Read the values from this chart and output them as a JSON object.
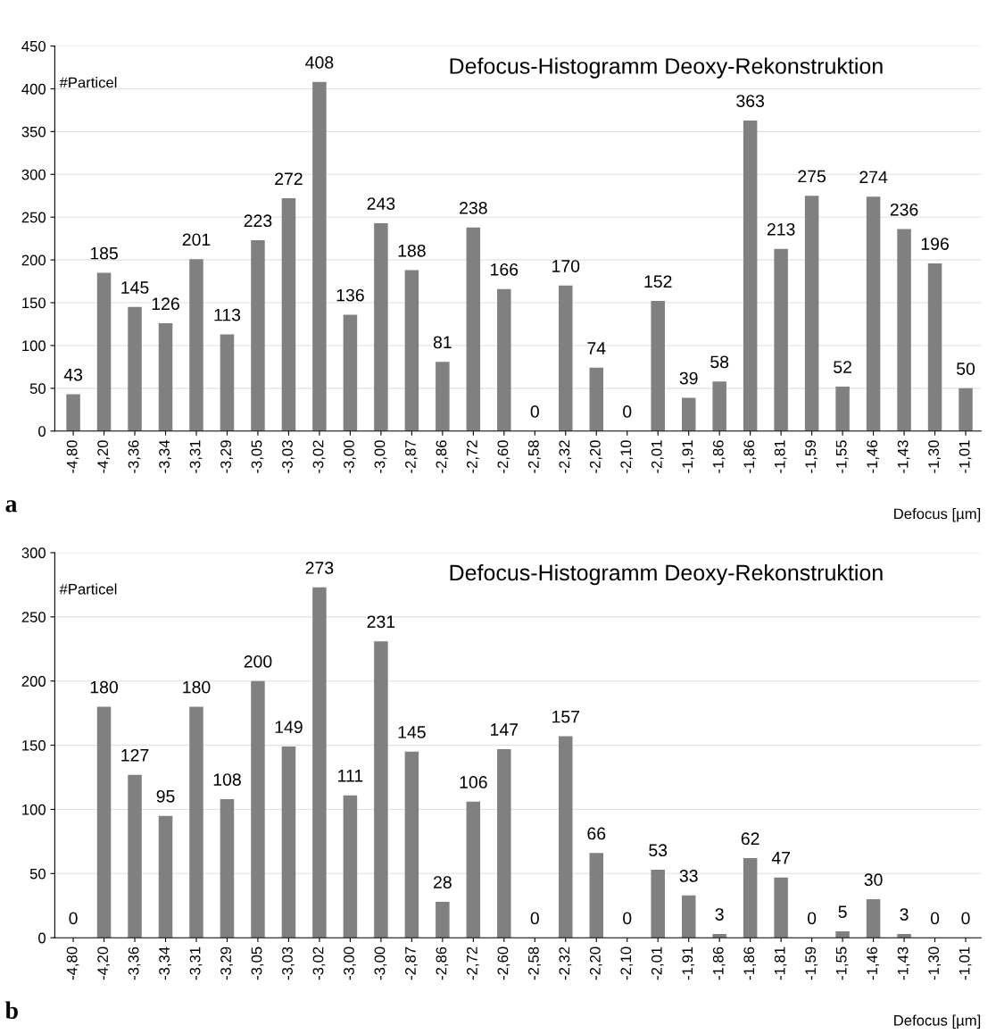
{
  "chart_data": [
    {
      "type": "bar",
      "title": "Defocus-Histogramm Deoxy-Rekonstruktion",
      "ylabel": "#Particel",
      "xlabel": "Defocus [µm]",
      "categories": [
        "-4,80",
        "-4,20",
        "-3,36",
        "-3,34",
        "-3,31",
        "-3,29",
        "-3,05",
        "-3,03",
        "-3,02",
        "-3,00",
        "-3,00",
        "-2,87",
        "-2,86",
        "-2,72",
        "-2,60",
        "-2,58",
        "-2,32",
        "-2,20",
        "-2,10",
        "-2,01",
        "-1,91",
        "-1,86",
        "-1,86",
        "-1,81",
        "-1,59",
        "-1,55",
        "-1,46",
        "-1,43",
        "-1,30",
        "-1,01"
      ],
      "values": [
        43,
        185,
        145,
        126,
        201,
        113,
        223,
        272,
        408,
        136,
        243,
        188,
        81,
        238,
        166,
        0,
        170,
        74,
        0,
        152,
        39,
        58,
        363,
        213,
        275,
        52,
        274,
        236,
        196,
        50
      ],
      "color": "#808080",
      "ylim": [
        0,
        450
      ],
      "yticks": [
        0,
        50,
        100,
        150,
        200,
        250,
        300,
        350,
        400,
        450
      ],
      "grid": "y",
      "data_labels": true,
      "annotations": [
        "a"
      ]
    },
    {
      "type": "bar",
      "title": "Defocus-Histogramm Deoxy-Rekonstruktion",
      "ylabel": "#Particel",
      "xlabel": "Defocus [µm]",
      "categories": [
        "-4,80",
        "-4,20",
        "-3,36",
        "-3,34",
        "-3,31",
        "-3,29",
        "-3,05",
        "-3,03",
        "-3,02",
        "-3,00",
        "-3,00",
        "-2,87",
        "-2,86",
        "-2,72",
        "-2,60",
        "-2,58",
        "-2,32",
        "-2,20",
        "-2,10",
        "-2,01",
        "-1,91",
        "-1,86",
        "-1,86",
        "-1,81",
        "-1,59",
        "-1,55",
        "-1,46",
        "-1,43",
        "-1,30",
        "-1,01"
      ],
      "values": [
        0,
        180,
        127,
        95,
        180,
        108,
        200,
        149,
        273,
        111,
        231,
        145,
        28,
        106,
        147,
        0,
        157,
        66,
        0,
        53,
        33,
        3,
        62,
        47,
        0,
        5,
        30,
        3,
        0,
        0
      ],
      "color": "#808080",
      "ylim": [
        0,
        300
      ],
      "yticks": [
        0,
        50,
        100,
        150,
        200,
        250,
        300
      ],
      "grid": "y",
      "data_labels": true,
      "annotations": [
        "b"
      ]
    }
  ]
}
